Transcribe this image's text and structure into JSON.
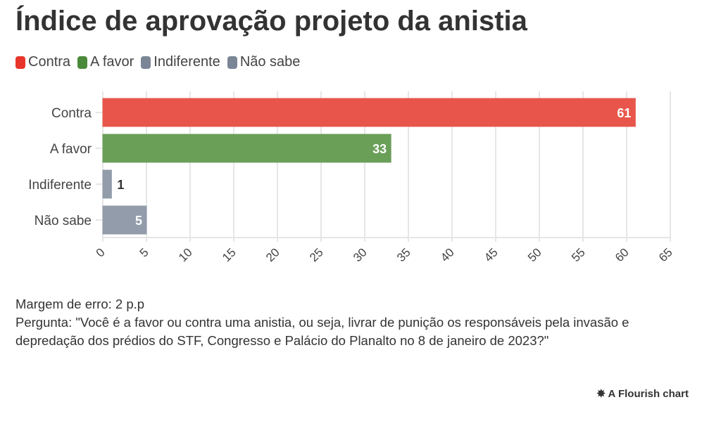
{
  "chart_data": {
    "type": "bar",
    "orientation": "horizontal",
    "title": "Índice de aprovação projeto da anistia",
    "categories": [
      "Contra",
      "A favor",
      "Indiferente",
      "Não sabe"
    ],
    "values": [
      61,
      33,
      1,
      5
    ],
    "colors": [
      "#e8564b",
      "#6a9f58",
      "#929cab",
      "#929cab"
    ],
    "legend": [
      {
        "label": "Contra",
        "color": "#e8352b"
      },
      {
        "label": "A favor",
        "color": "#4b8a3a"
      },
      {
        "label": "Indiferente",
        "color": "#7a8596"
      },
      {
        "label": "Não sabe",
        "color": "#7a8596"
      }
    ],
    "xlim": [
      0,
      65
    ],
    "xticks": [
      0,
      5,
      10,
      15,
      20,
      25,
      30,
      35,
      40,
      45,
      50,
      55,
      60,
      65
    ],
    "grid": true,
    "legend_position": "top-left"
  },
  "notes": {
    "margin": "Margem de erro: 2 p.p",
    "question": "Pergunta: \"Você é a favor ou contra uma anistia, ou seja, livrar de punição os responsáveis pela invasão e depredação dos prédios do STF, Congresso e Palácio do Planalto no 8 de janeiro de 2023?\""
  },
  "credit": "A Flourish chart"
}
